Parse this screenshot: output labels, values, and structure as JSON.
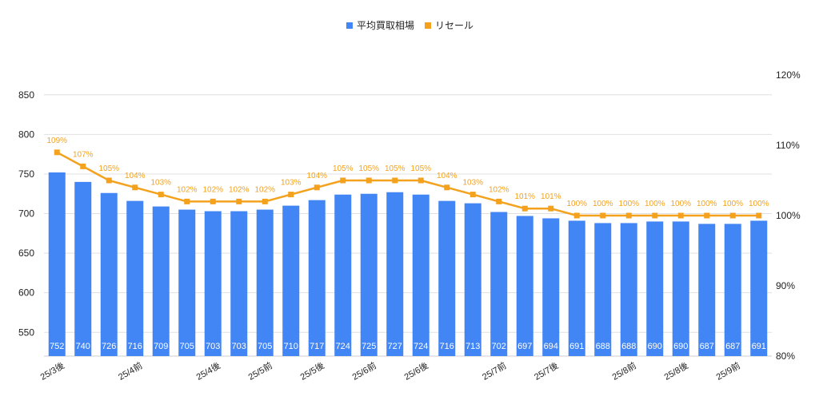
{
  "chart_data": {
    "type": "bar",
    "legend_position": "top-center",
    "grid": true,
    "colors": {
      "bars": "#4285f4",
      "line": "#f4a21e",
      "grid": "#e0e0e0"
    },
    "series": [
      {
        "name": "平均買取相場",
        "type": "bar",
        "axis": "left",
        "values": [
          752,
          740,
          726,
          716,
          709,
          705,
          703,
          703,
          705,
          710,
          717,
          724,
          725,
          727,
          724,
          716,
          713,
          702,
          697,
          694,
          691,
          688,
          688,
          690,
          690,
          687,
          687,
          691
        ]
      },
      {
        "name": "リセール",
        "type": "line",
        "axis": "right",
        "values": [
          109,
          107,
          105,
          104,
          103,
          102,
          102,
          102,
          102,
          103,
          104,
          105,
          105,
          105,
          105,
          104,
          103,
          102,
          101,
          101,
          100,
          100,
          100,
          100,
          100,
          100,
          100,
          100
        ],
        "labels": [
          "109%",
          "107%",
          "105%",
          "104%",
          "103%",
          "102%",
          "102%",
          "102%",
          "102%",
          "103%",
          "104%",
          "105%",
          "105%",
          "105%",
          "105%",
          "104%",
          "103%",
          "102%",
          "101%",
          "101%",
          "100%",
          "100%",
          "100%",
          "100%",
          "100%",
          "100%",
          "100%",
          "100%"
        ]
      }
    ],
    "x_tick_labels": [
      {
        "index": 0,
        "text": "25/3後"
      },
      {
        "index": 3,
        "text": "25/4前"
      },
      {
        "index": 6,
        "text": "25/4後"
      },
      {
        "index": 8,
        "text": "25/5前"
      },
      {
        "index": 10,
        "text": "25/5後"
      },
      {
        "index": 12,
        "text": "25/6前"
      },
      {
        "index": 14,
        "text": "25/6後"
      },
      {
        "index": 17,
        "text": "25/7前"
      },
      {
        "index": 19,
        "text": "25/7後"
      },
      {
        "index": 22,
        "text": "25/8前"
      },
      {
        "index": 24,
        "text": "25/8後"
      },
      {
        "index": 26,
        "text": "25/9前"
      }
    ],
    "y_left": {
      "ylim": [
        520,
        875
      ],
      "ticks": [
        550,
        600,
        650,
        700,
        750,
        800,
        850
      ]
    },
    "y_right": {
      "ylim": [
        80,
        120
      ],
      "ticks": [
        80,
        90,
        100,
        110,
        120
      ],
      "tick_labels": [
        "80%",
        "90%",
        "100%",
        "110%",
        "120%"
      ]
    }
  }
}
